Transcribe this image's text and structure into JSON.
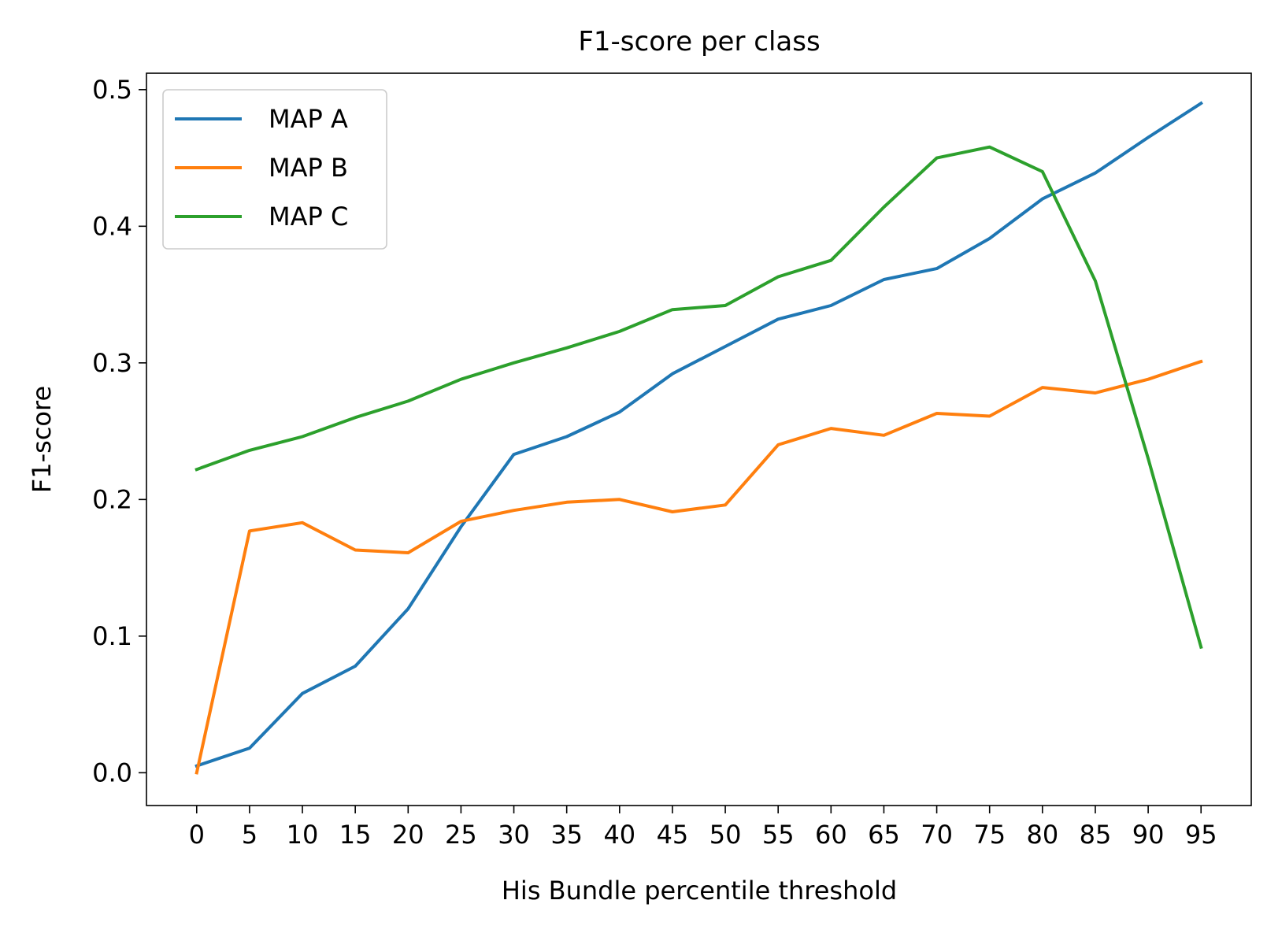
{
  "chart_data": {
    "type": "line",
    "title": "F1-score per class",
    "xlabel": "His Bundle percentile threshold",
    "ylabel": "F1-score",
    "x": [
      0,
      5,
      10,
      15,
      20,
      25,
      30,
      35,
      40,
      45,
      50,
      55,
      60,
      65,
      70,
      75,
      80,
      85,
      90,
      95
    ],
    "xticks": [
      "0",
      "5",
      "10",
      "15",
      "20",
      "25",
      "30",
      "35",
      "40",
      "45",
      "50",
      "55",
      "60",
      "65",
      "70",
      "75",
      "80",
      "85",
      "90",
      "95"
    ],
    "yticks": [
      "0.0",
      "0.1",
      "0.2",
      "0.3",
      "0.4",
      "0.5"
    ],
    "ytick_values": [
      0.0,
      0.1,
      0.2,
      0.3,
      0.4,
      0.5
    ],
    "xlim": [
      -4.75,
      99.75
    ],
    "ylim": [
      -0.024,
      0.512
    ],
    "grid": false,
    "legend_position": "top-left",
    "series": [
      {
        "name": "MAP A",
        "color": "#1f77b4",
        "values": [
          0.005,
          0.018,
          0.058,
          0.078,
          0.12,
          0.18,
          0.233,
          0.246,
          0.264,
          0.292,
          0.312,
          0.332,
          0.342,
          0.361,
          0.369,
          0.391,
          0.42,
          0.439,
          0.465,
          0.49
        ]
      },
      {
        "name": "MAP B",
        "color": "#ff7f0e",
        "values": [
          0.0,
          0.177,
          0.183,
          0.163,
          0.161,
          0.184,
          0.192,
          0.198,
          0.2,
          0.191,
          0.196,
          0.24,
          0.252,
          0.247,
          0.263,
          0.261,
          0.282,
          0.278,
          0.288,
          0.301
        ]
      },
      {
        "name": "MAP C",
        "color": "#2ca02c",
        "values": [
          0.222,
          0.236,
          0.246,
          0.26,
          0.272,
          0.288,
          0.3,
          0.311,
          0.323,
          0.339,
          0.342,
          0.363,
          0.375,
          0.414,
          0.45,
          0.458,
          0.44,
          0.36,
          0.23,
          0.092
        ]
      }
    ]
  }
}
